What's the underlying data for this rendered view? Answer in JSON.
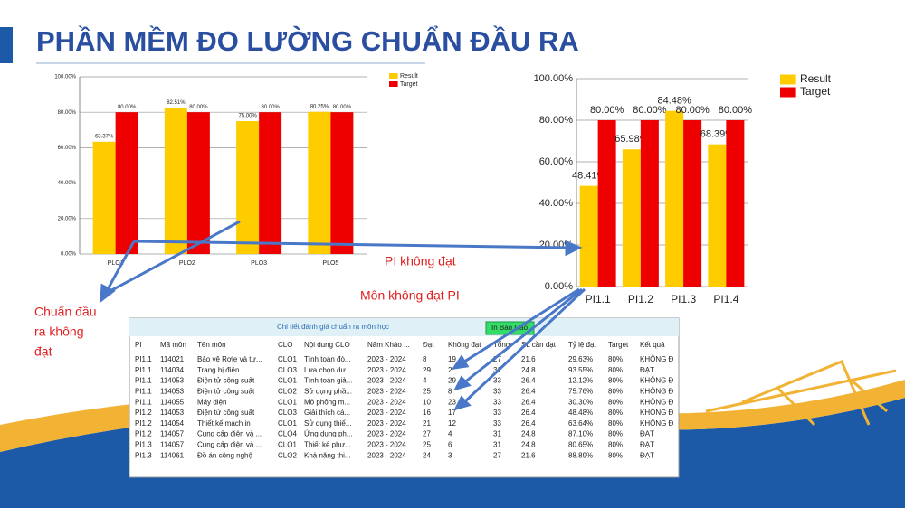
{
  "title": "PHẦN MỀM ĐO LƯỜNG CHUẨN ĐẦU RA",
  "annotations": {
    "pi_fail": "PI không đạt",
    "course_fail": "Môn không đạt PI",
    "plo_fail": [
      "Chuẩn đầu",
      "ra  không",
      "đạt"
    ]
  },
  "chart_data": [
    {
      "type": "bar",
      "categories": [
        "PLO1",
        "PLO2",
        "PLO3",
        "PLO5"
      ],
      "series": [
        {
          "name": "Result",
          "color": "#ffcc00",
          "values": [
            63.37,
            82.51,
            75.0,
            80.25
          ],
          "value_labels": [
            "63.37%",
            "82.51%",
            "75.00%",
            "80.25%"
          ]
        },
        {
          "name": "Target",
          "color": "#ee0000",
          "values": [
            80,
            80,
            80,
            80
          ],
          "value_labels": [
            "80.00%",
            "80.00%",
            "80.00%",
            "80.00%"
          ]
        }
      ],
      "ylim": [
        0,
        100
      ],
      "yticks": [
        {
          "value": 0,
          "label": "0.00%"
        },
        {
          "value": 20,
          "label": "20.00%"
        },
        {
          "value": 40,
          "label": "40.00%"
        },
        {
          "value": 60,
          "label": "60.00%"
        },
        {
          "value": 80,
          "label": "80.00%"
        },
        {
          "value": 100,
          "label": "100.00%"
        }
      ],
      "grid": true,
      "legend": "upper right"
    },
    {
      "type": "bar",
      "categories": [
        "PI1.1",
        "PI1.2",
        "PI1.3",
        "PI1.4"
      ],
      "series": [
        {
          "name": "Result",
          "color": "#ffcc00",
          "values": [
            48.41,
            65.98,
            84.48,
            68.39
          ],
          "value_labels": [
            "48.41%",
            "65.98%",
            "84.48%",
            "68.39%"
          ]
        },
        {
          "name": "Target",
          "color": "#ee0000",
          "values": [
            80,
            80,
            80,
            80
          ],
          "value_labels": [
            "80.00%",
            "80.00%",
            "80.00%",
            "80.00%"
          ]
        }
      ],
      "ylim": [
        0,
        100
      ],
      "yticks": [
        {
          "value": 0,
          "label": "0.00%"
        },
        {
          "value": 20,
          "label": "20.00%"
        },
        {
          "value": 40,
          "label": "40.00%"
        },
        {
          "value": 60,
          "label": "60.00%"
        },
        {
          "value": 80,
          "label": "80.00%"
        },
        {
          "value": 100,
          "label": "100.00%"
        }
      ],
      "grid": true,
      "legend": "upper right"
    }
  ],
  "table": {
    "title": "Chi tiết đánh giá chuẩn ra môn học",
    "button": "In Báo Cáo",
    "columns": [
      "PI",
      "Mã môn",
      "Tên môn",
      "CLO",
      "Nội dung CLO",
      "Năm Khảo ...",
      "Đạt",
      "Không đạt",
      "Tổng",
      "SL cần đạt",
      "Tỷ lệ đạt",
      "Target",
      "Kết quả"
    ],
    "rows": [
      [
        "PI1.1",
        "114021",
        "Bảo vệ Rơle và tự...",
        "CLO1",
        "Tính toán đò...",
        "2023 - 2024",
        "8",
        "19",
        "27",
        "21.6",
        "29.63%",
        "80%",
        "KHÔNG Đ"
      ],
      [
        "PI1.1",
        "114034",
        "Trang bị điện",
        "CLO3",
        "Lựa chọn dư...",
        "2023 - 2024",
        "29",
        "2",
        "31",
        "24.8",
        "93.55%",
        "80%",
        "ĐẠT"
      ],
      [
        "PI1.1",
        "114053",
        "Điện tử công suất",
        "CLO1",
        "Tính toán giả...",
        "2023 - 2024",
        "4",
        "29",
        "33",
        "26.4",
        "12.12%",
        "80%",
        "KHÔNG Đ"
      ],
      [
        "PI1.1",
        "114053",
        "Điện tử công suất",
        "CLO2",
        "Sử dụng phầ...",
        "2023 - 2024",
        "25",
        "8",
        "33",
        "26.4",
        "75.76%",
        "80%",
        "KHÔNG Đ"
      ],
      [
        "PI1.1",
        "114055",
        "Máy điện",
        "CLO1",
        "Mô phỏng m...",
        "2023 - 2024",
        "10",
        "23",
        "33",
        "26.4",
        "30.30%",
        "80%",
        "KHÔNG Đ"
      ],
      [
        "PI1.2",
        "114053",
        "Điện tử công suất",
        "CLO3",
        "Giải thích cá...",
        "2023 - 2024",
        "16",
        "17",
        "33",
        "26.4",
        "48.48%",
        "80%",
        "KHÔNG Đ"
      ],
      [
        "PI1.2",
        "114054",
        "Thiết kế mạch in",
        "CLO1",
        "Sử dụng thiế...",
        "2023 - 2024",
        "21",
        "12",
        "33",
        "26.4",
        "63.64%",
        "80%",
        "KHÔNG Đ"
      ],
      [
        "PI1.2",
        "114057",
        "Cung cấp điện và ...",
        "CLO4",
        "Ứng dụng ph...",
        "2023 - 2024",
        "27",
        "4",
        "31",
        "24.8",
        "87.10%",
        "80%",
        "ĐẠT"
      ],
      [
        "PI1.3",
        "114057",
        "Cung cấp điện và ...",
        "CLO1",
        "Thiết kế phư...",
        "2023 - 2024",
        "25",
        "6",
        "31",
        "24.8",
        "80.65%",
        "80%",
        "ĐẠT"
      ],
      [
        "PI1.3",
        "114061",
        "Đồ án công nghệ",
        "CLO2",
        "Khả năng thi...",
        "2023 - 2024",
        "24",
        "3",
        "27",
        "21.6",
        "88.89%",
        "80%",
        "ĐẠT"
      ]
    ]
  }
}
